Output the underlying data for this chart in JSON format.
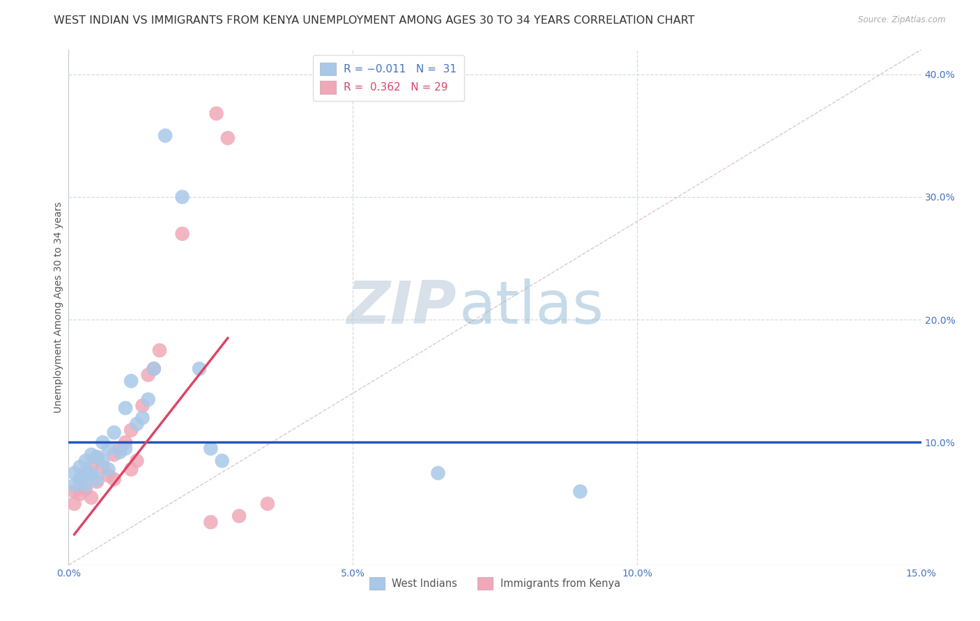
{
  "title": "WEST INDIAN VS IMMIGRANTS FROM KENYA UNEMPLOYMENT AMONG AGES 30 TO 34 YEARS CORRELATION CHART",
  "source": "Source: ZipAtlas.com",
  "ylabel": "Unemployment Among Ages 30 to 34 years",
  "xlim": [
    0.0,
    0.15
  ],
  "ylim": [
    0.0,
    0.42
  ],
  "x_ticks": [
    0.0,
    0.05,
    0.1,
    0.15
  ],
  "x_tick_labels": [
    "0.0%",
    "5.0%",
    "10.0%",
    "15.0%"
  ],
  "y_ticks_right": [
    0.1,
    0.2,
    0.3,
    0.4
  ],
  "y_tick_labels_right": [
    "10.0%",
    "20.0%",
    "30.0%",
    "40.0%"
  ],
  "blue_color": "#a8c8e8",
  "pink_color": "#f0a8b8",
  "blue_line_color": "#2255bb",
  "pink_line_color": "#dd4466",
  "diagonal_color": "#d8b8b8",
  "bg_color": "#ffffff",
  "grid_color": "#d4dce8",
  "title_fontsize": 11.5,
  "axis_label_fontsize": 10,
  "tick_fontsize": 10,
  "blue_scatter_x": [
    0.001,
    0.001,
    0.002,
    0.002,
    0.003,
    0.003,
    0.003,
    0.004,
    0.004,
    0.005,
    0.005,
    0.006,
    0.006,
    0.007,
    0.007,
    0.008,
    0.009,
    0.01,
    0.01,
    0.011,
    0.012,
    0.013,
    0.014,
    0.015,
    0.017,
    0.02,
    0.023,
    0.025,
    0.027,
    0.065,
    0.09
  ],
  "blue_scatter_y": [
    0.075,
    0.065,
    0.08,
    0.07,
    0.085,
    0.073,
    0.065,
    0.09,
    0.075,
    0.088,
    0.07,
    0.1,
    0.085,
    0.095,
    0.078,
    0.108,
    0.092,
    0.128,
    0.095,
    0.15,
    0.115,
    0.12,
    0.135,
    0.16,
    0.35,
    0.3,
    0.16,
    0.095,
    0.085,
    0.075,
    0.06
  ],
  "pink_scatter_x": [
    0.001,
    0.001,
    0.002,
    0.002,
    0.003,
    0.003,
    0.004,
    0.004,
    0.005,
    0.005,
    0.006,
    0.007,
    0.008,
    0.008,
    0.009,
    0.01,
    0.011,
    0.011,
    0.012,
    0.013,
    0.014,
    0.015,
    0.016,
    0.02,
    0.025,
    0.026,
    0.028,
    0.03,
    0.035
  ],
  "pink_scatter_y": [
    0.06,
    0.05,
    0.07,
    0.058,
    0.075,
    0.062,
    0.08,
    0.055,
    0.088,
    0.068,
    0.08,
    0.073,
    0.09,
    0.07,
    0.095,
    0.1,
    0.11,
    0.078,
    0.085,
    0.13,
    0.155,
    0.16,
    0.175,
    0.27,
    0.035,
    0.368,
    0.348,
    0.04,
    0.05
  ],
  "blue_trend_x": [
    0.0,
    0.15
  ],
  "blue_trend_y": [
    0.1,
    0.1
  ],
  "pink_trend_x": [
    0.001,
    0.028
  ],
  "pink_trend_y": [
    0.025,
    0.185
  ],
  "watermark_zip": "ZIP",
  "watermark_atlas": "atlas"
}
